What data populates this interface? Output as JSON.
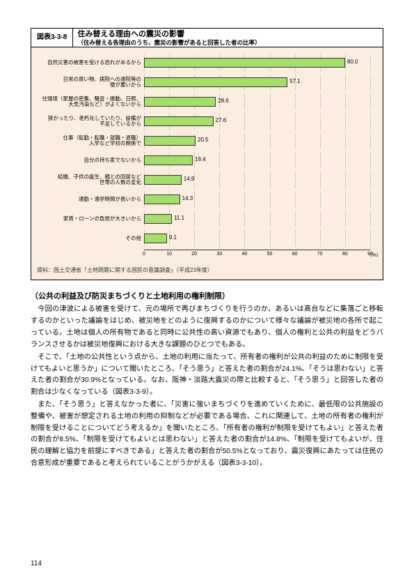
{
  "figure": {
    "number": "図表3-3-8",
    "title": "住み替える理由への震災の影響",
    "subtitle": "（住み替える各理由のうち、震災の影響があると回答した者の比率）",
    "bar_color": "#a4e069",
    "border_color": "#333333",
    "background_color": "#fbeee0",
    "grid_color": "#cccccc",
    "xlim_max": 90,
    "xtick_step": 10,
    "unit": "（%）",
    "label_fontsize": 7.5,
    "value_fontsize": 8,
    "items": [
      {
        "label": "自然災害の被害を受ける恐れがあるから",
        "value": 80.0,
        "display": "80.0"
      },
      {
        "label": "日常の買い物、病院への通院等の\n便が悪いから",
        "value": 57.1,
        "display": "57.1"
      },
      {
        "label": "住環境（家屋の密集、騒音・振動、日照、\n大気汚染など）がよくないから",
        "value": 28.6,
        "display": "28.6"
      },
      {
        "label": "狭かったり、老朽化していたり、設備が\n不足しているから",
        "value": 27.6,
        "display": "27.6"
      },
      {
        "label": "仕事（転勤・転職・就職・退職）\n入学など学校の関係で",
        "value": 20.5,
        "display": "20.5"
      },
      {
        "label": "自分の持ち家でないから",
        "value": 19.4,
        "display": "19.4"
      },
      {
        "label": "結婚、子供の誕生、親との同居など\n世帯の人数の変化",
        "value": 14.9,
        "display": "14.9"
      },
      {
        "label": "通勤・通学時間が長いから",
        "value": 14.3,
        "display": "14.3"
      },
      {
        "label": "家賃・ローンの負担が大きいから",
        "value": 11.1,
        "display": "11.1"
      },
      {
        "label": "その他",
        "value": 9.1,
        "display": "9.1"
      }
    ],
    "source": "資料：国土交通省「土地問題に関する国民の意識調査」（平成23年度）"
  },
  "section_heading": "（公共の利益及び防災まちづくりと土地利用の権利制限）",
  "paragraphs": [
    "今回の津波による被害を受けて、元の場所で再びまちづくりを行うのか、あるいは高台などに集落ごと移転するのかといった議論をはじめ、被災地をどのように復興するのかについて様々な議論が被災地の各所で起こっている。土地は個人の所有物であると同時に公共性の高い資源でもあり、個人の権利と公共の利益をどうバランスさせるかは被災地復興における大きな課題のひとつでもある。",
    "そこで、「土地の公共性という点から、土地の利用に当たって、所有者の権利が公共の利益のために制限を受けてもよいと思うか」について聞いたところ、「そう思う」と答えた者の割合が24.1%、「そうは思わない」と答えた者の割合が30.9%となっている。なお、阪神・淡路大震災の際と比較すると、「そう思う」と回答した者の割合は少なくなっている（図表3-3-9）。",
    "また、「そう思う」と答えなかった者に、「災害に強いまちづくりを進めていくために、最低限の公共施設の整備や、被害が想定される土地の利用の抑制などが必要である場合、これに関連して、土地の所有者の権利が制限を受けることについてどう考えるか」を聞いたところ、「所有者の権利が制限を受けてもよい」と答えた者の割合が8.5%、「制限を受けてもよいとは思わない」と答えた者の割合が14.8%、「制限を受けてもよいが、住民の理解と協力を前提にすべきである」と答えた者の割合が50.5%となっており、震災復興にあたっては住民の合意形成が重要であると考えられていることがうかがえる（図表3-3-10）。"
  ],
  "page_number": "114"
}
